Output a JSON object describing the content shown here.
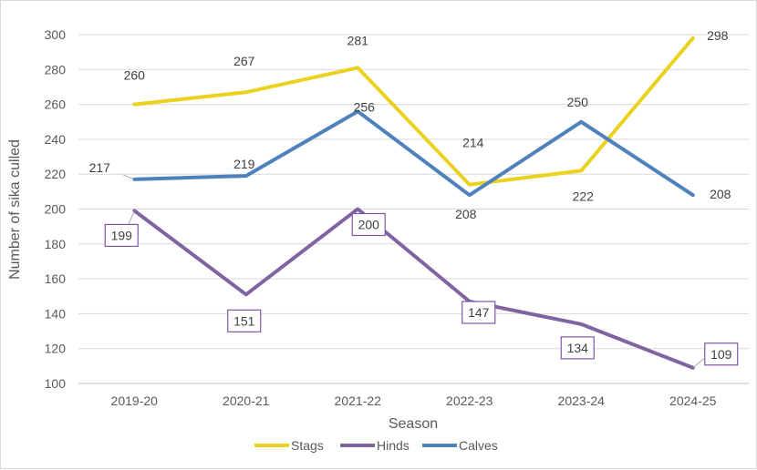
{
  "chart_data": {
    "type": "line",
    "title": "",
    "xlabel": "Season",
    "ylabel": "Number of sika culled",
    "categories": [
      "2019-20",
      "2020-21",
      "2021-22",
      "2022-23",
      "2023-24",
      "2024-25"
    ],
    "ylim": [
      100,
      300
    ],
    "yticks": [
      100,
      120,
      140,
      160,
      180,
      200,
      220,
      240,
      260,
      280,
      300
    ],
    "grid": true,
    "legend_position": "bottom",
    "series": [
      {
        "name": "Stags",
        "color": "#ebd21f",
        "values": [
          260,
          267,
          281,
          214,
          222,
          298
        ]
      },
      {
        "name": "Hinds",
        "color": "#8064a2",
        "values": [
          199,
          151,
          200,
          147,
          134,
          109
        ]
      },
      {
        "name": "Calves",
        "color": "#4f81bd",
        "values": [
          217,
          219,
          256,
          208,
          250,
          208
        ]
      }
    ]
  }
}
